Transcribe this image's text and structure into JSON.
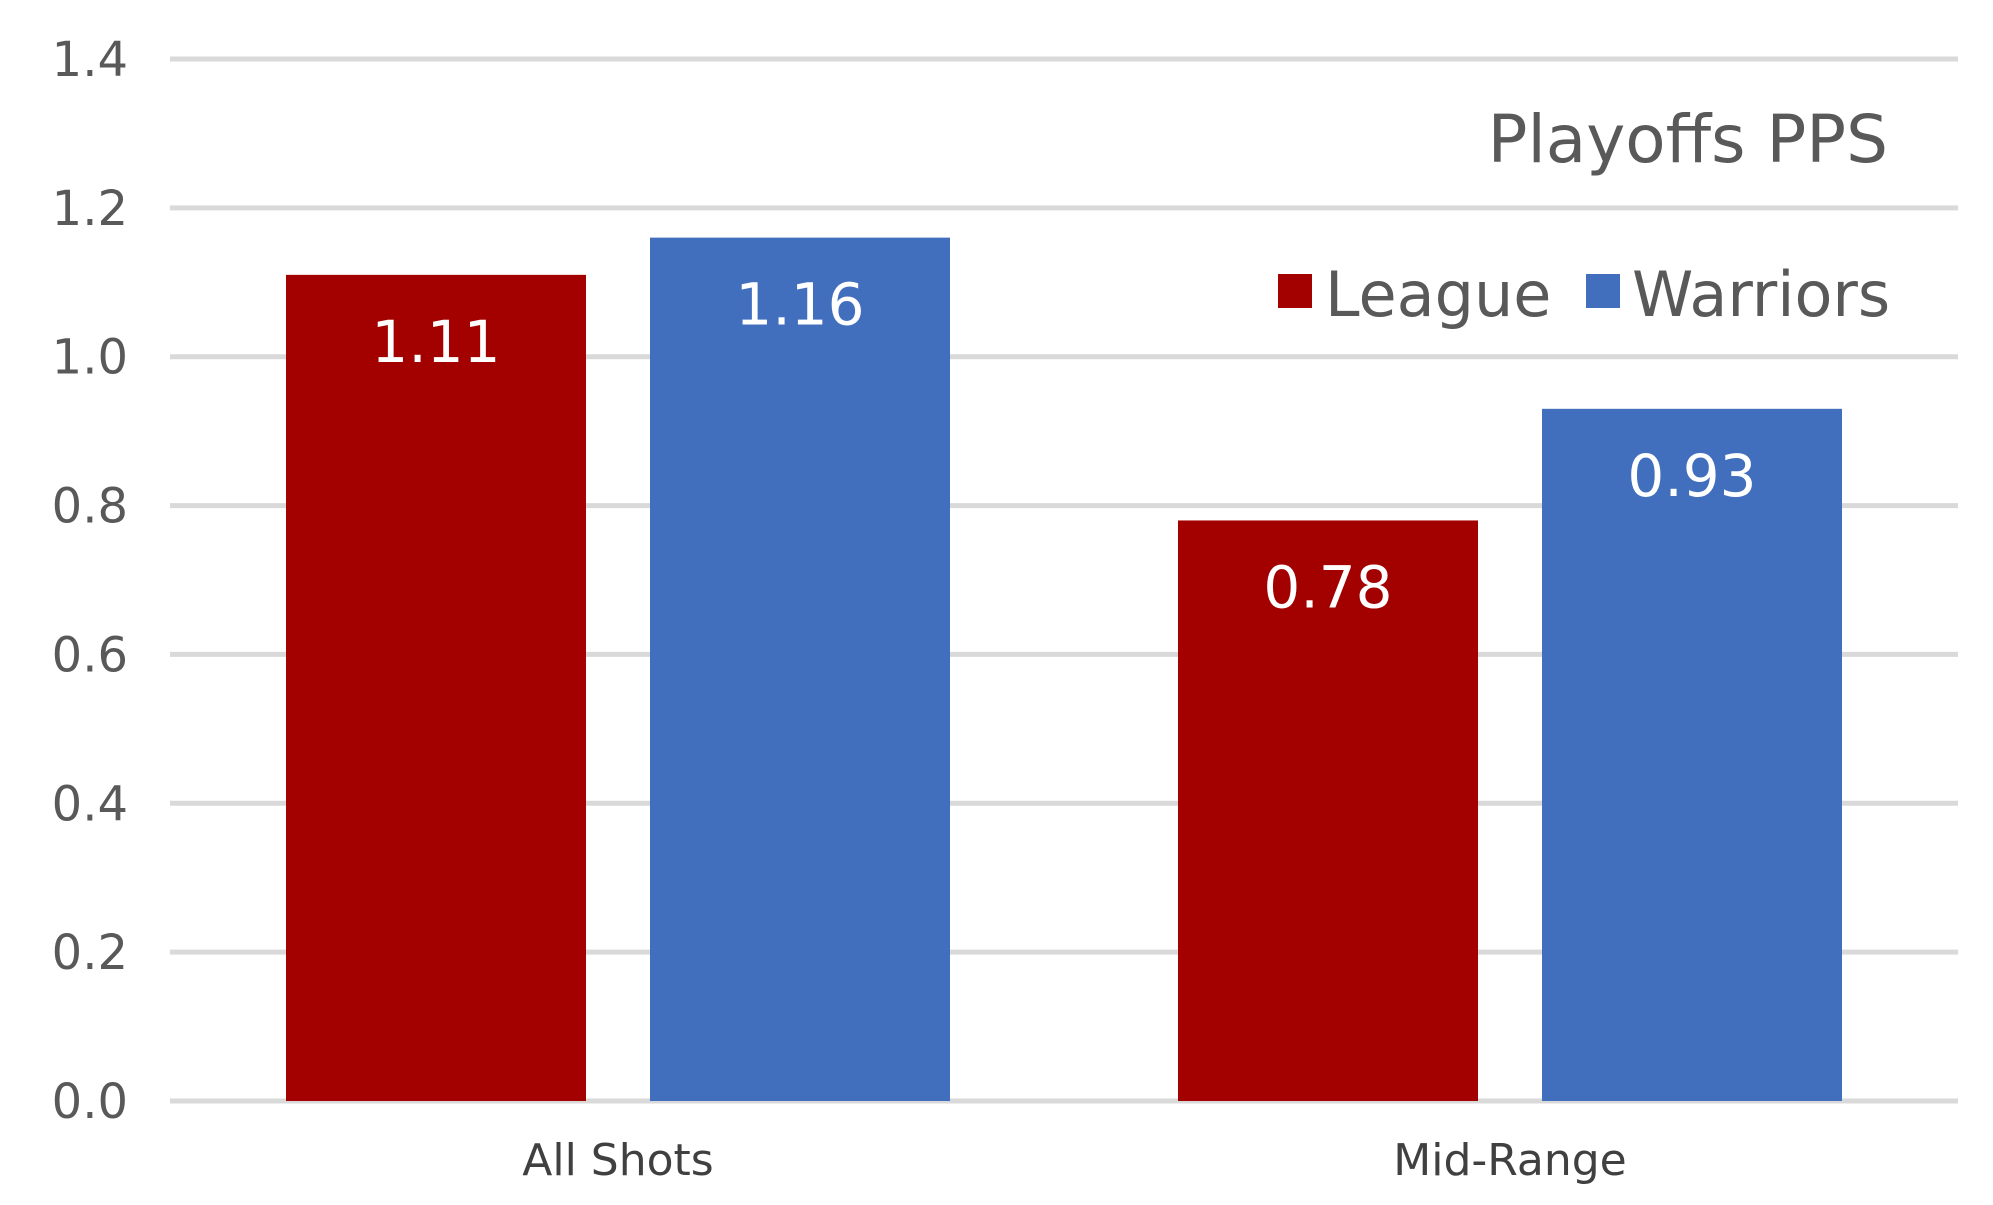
{
  "chart_data": {
    "type": "bar",
    "title": "Playoffs PPS",
    "xlabel": "",
    "ylabel": "",
    "categories": [
      "All Shots",
      "Mid-Range"
    ],
    "series": [
      {
        "name": "League",
        "values": [
          1.11,
          0.78
        ],
        "color": "#a30000"
      },
      {
        "name": "Warriors",
        "values": [
          1.16,
          0.93
        ],
        "color": "#416fbe"
      }
    ],
    "data_labels": [
      [
        "1.11",
        "0.78"
      ],
      [
        "1.16",
        "0.93"
      ]
    ],
    "ylim": [
      0,
      1.4
    ],
    "yticks": [
      0,
      0.2,
      0.4,
      0.6,
      0.8,
      1.0,
      1.2,
      1.4
    ],
    "ytick_labels": [
      "0.0",
      "0.2",
      "0.4",
      "0.6",
      "0.8",
      "1.0",
      "1.2",
      "1.4"
    ],
    "grid": true,
    "legend_position": "top-right",
    "gridline_color": "#d9d9d9"
  }
}
